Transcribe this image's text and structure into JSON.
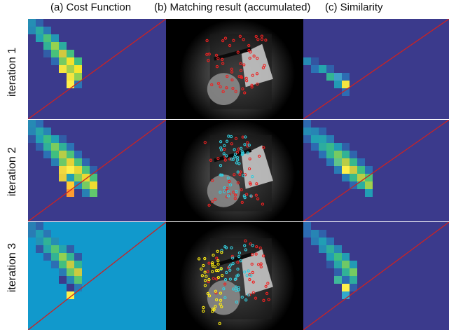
{
  "columns": [
    {
      "title": "(a) Cost Function"
    },
    {
      "title": "(b) Matching result (accumulated)"
    },
    {
      "title": "(c) Similarity"
    }
  ],
  "rows": [
    {
      "label": "iteration 1"
    },
    {
      "label": "iteration 2"
    },
    {
      "label": "iteration 3"
    }
  ],
  "colors": {
    "background_dark": "#3b3a8c",
    "background_alt": "#1199cc",
    "diagonal_line": "#cc2222",
    "photo_bg": "#000000",
    "match_red": "#ee2222",
    "match_cyan": "#33ccdd",
    "match_yellow": "#ffee11"
  }
}
